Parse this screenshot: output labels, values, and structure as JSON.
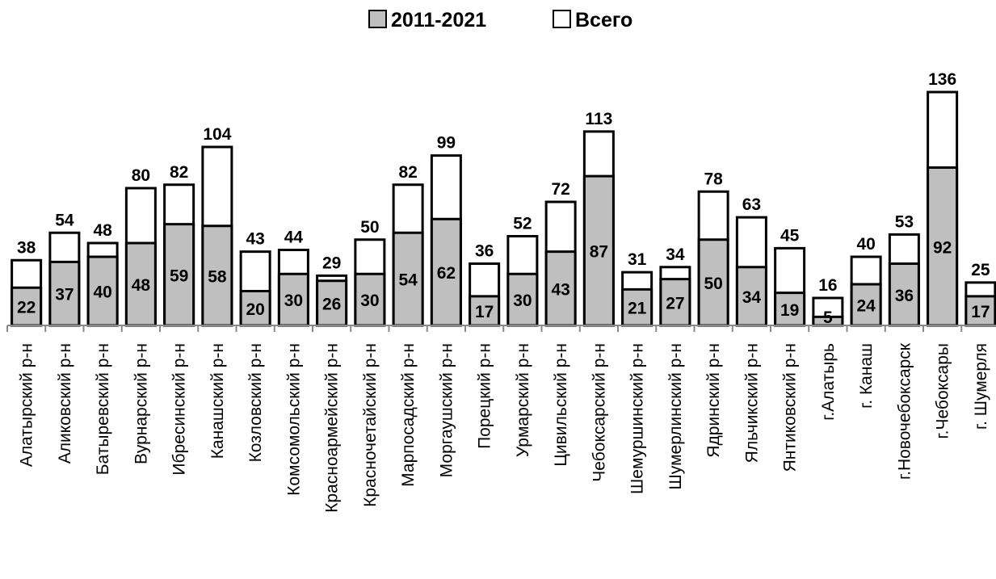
{
  "chart_data": {
    "type": "bar",
    "legend_position": "top",
    "series": [
      {
        "name": "2011-2021",
        "color": "#bfbfbf",
        "values": [
          22,
          37,
          40,
          48,
          59,
          58,
          20,
          30,
          26,
          30,
          54,
          62,
          17,
          30,
          43,
          87,
          21,
          27,
          50,
          34,
          19,
          5,
          24,
          36,
          92,
          17
        ]
      },
      {
        "name": "Всего",
        "color": "#ffffff",
        "values": [
          38,
          54,
          48,
          80,
          82,
          104,
          43,
          44,
          29,
          50,
          82,
          99,
          36,
          52,
          72,
          113,
          31,
          34,
          78,
          63,
          45,
          16,
          40,
          53,
          136,
          25
        ]
      }
    ],
    "categories": [
      "Алатырский р-н",
      "Аликовский р-н",
      "Батыревский р-н",
      "Вурнарский р-н",
      "Ибресинский р-н",
      "Канашский р-н",
      "Козловский р-н",
      "Комсомольский р-н",
      "Красноармейский р-н",
      "Красночетайский р-н",
      "Марпосадский р-н",
      "Моргаушский р-н",
      "Порецкий р-н",
      "Урмарский р-н",
      "Цивильский р-н",
      "Чебоксарский р-н",
      "Шемуршинский р-н",
      "Шумерлинский р-н",
      "Ядринский р-н",
      "Яльчикский р-н",
      "Янтиковский р-н",
      "г.Алатырь",
      "г. Канаш",
      "г.Новочебоксарск",
      "г.Чебоксары",
      "г. Шумерля"
    ],
    "ylim": [
      0,
      140
    ],
    "grid": false
  }
}
